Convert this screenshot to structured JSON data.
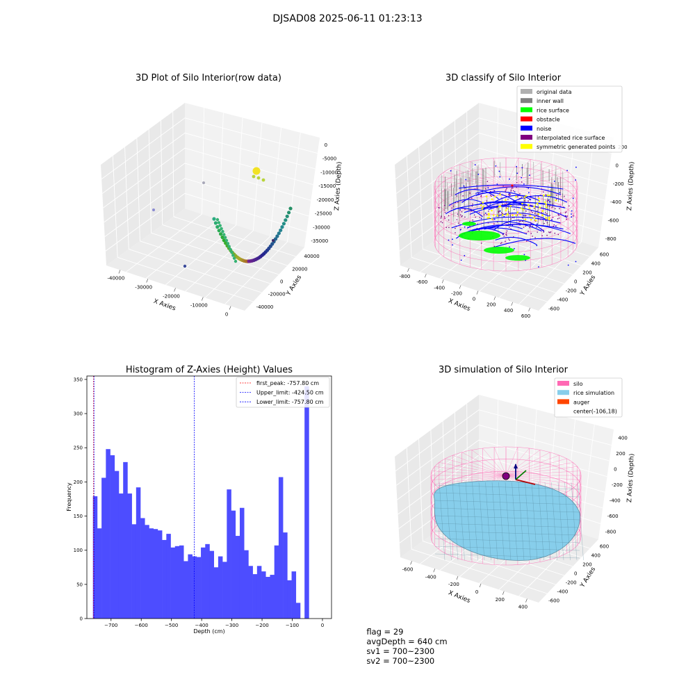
{
  "figure_title": "DJSAD08 2025-06-11 01:23:13",
  "footer": {
    "flag": "flag = 29",
    "avg_depth": "avgDepth = 640 cm",
    "sv1": "sv1 = 700~2300",
    "sv2": "sv2 = 700~2300"
  },
  "colors": {
    "original": "#b0b0b0",
    "inner_wall": "#808080",
    "rice_surface": "#00ff00",
    "obstacle": "#ff0000",
    "noise": "#0000ff",
    "interpolated": "#800080",
    "symmetric": "#ffff00",
    "silo": "#ff69b4",
    "rice_sim": "#87ceeb",
    "auger": "#ff4500",
    "hist_bar": "#4d4dff"
  },
  "chart_data": [
    {
      "type": "scatter3d",
      "title": "3D Plot of Silo Interior(row data)",
      "xlabel": "X Axies",
      "ylabel": "Y Axies",
      "zlabel": "Z Axies (Depth)",
      "x_ticks": [
        "-40000",
        "-30000",
        "-20000",
        "-10000",
        "0"
      ],
      "y_ticks": [
        "-40000",
        "-20000",
        "0",
        "20000",
        "40000"
      ],
      "z_ticks": [
        "0",
        "-5000",
        "-10000",
        "-15000",
        "-20000",
        "-25000",
        "-30000",
        "-35000"
      ]
    },
    {
      "type": "scatter3d",
      "title": "3D classify of Silo Interior",
      "xlabel": "X Axies",
      "ylabel": "Y Axies",
      "zlabel": "Z Axies (Depth)",
      "x_ticks": [
        "-800",
        "-600",
        "-400",
        "-200",
        "0",
        "200",
        "400",
        "600"
      ],
      "y_ticks": [
        "-600",
        "-400",
        "-200",
        "0",
        "200",
        "400",
        "600"
      ],
      "z_ticks": [
        "200",
        "0",
        "-200",
        "-400",
        "-600",
        "-800"
      ],
      "legend_position": "top-right",
      "legend": [
        "original data",
        "inner wall",
        "rice surface",
        "obstacle",
        "noise",
        "interpolated rice surface",
        "symmetric generated points"
      ]
    },
    {
      "type": "bar",
      "title": "Histogram of Z-Axies (Height) Values",
      "xlabel": "Depth (cm)",
      "ylabel": "Frequency",
      "xlim": [
        -780,
        30
      ],
      "ylim": [
        0,
        355
      ],
      "bin_start": -760,
      "bin_width": 14.3,
      "values": [
        179,
        132,
        206,
        248,
        239,
        216,
        183,
        229,
        183,
        138,
        192,
        147,
        137,
        132,
        131,
        129,
        115,
        124,
        104,
        106,
        107,
        84,
        94,
        91,
        90,
        104,
        109,
        99,
        75,
        91,
        83,
        189,
        158,
        121,
        162,
        100,
        77,
        65,
        77,
        69,
        61,
        64,
        107,
        207,
        126,
        56,
        69,
        23,
        0,
        340
      ],
      "x_ticks": [
        -700,
        -600,
        -500,
        -400,
        -300,
        -200,
        -100,
        0
      ],
      "x_tick_labels": [
        "−700",
        "−600",
        "−500",
        "−400",
        "−300",
        "−200",
        "−100",
        "0"
      ],
      "y_ticks": [
        0,
        50,
        100,
        150,
        200,
        250,
        300,
        350
      ],
      "vlines": [
        {
          "label": "first_peak: -757.80 cm",
          "x": -757.8,
          "color": "#ff0000"
        },
        {
          "label": "Upper_limit: -424.50 cm",
          "x": -424.5,
          "color": "#0000ff"
        },
        {
          "label": "Lower_limit: -757.80 cm",
          "x": -757.8,
          "color": "#0000ff"
        }
      ],
      "legend_position": "top-right"
    },
    {
      "type": "surface3d",
      "title": "3D simulation of Silo Interior",
      "xlabel": "X Axies",
      "ylabel": "Y Axies",
      "zlabel": "Z Axies (Depth)",
      "x_ticks": [
        "-600",
        "-400",
        "-200",
        "0",
        "200",
        "400"
      ],
      "y_ticks": [
        "-600",
        "-400",
        "-200",
        "0",
        "200",
        "400",
        "600"
      ],
      "z_ticks": [
        "400",
        "200",
        "0",
        "-200",
        "-400",
        "-600",
        "-800"
      ],
      "legend_position": "top-right",
      "legend": [
        "silo",
        "rice simulation",
        "auger",
        "center(-106,18)"
      ]
    }
  ]
}
